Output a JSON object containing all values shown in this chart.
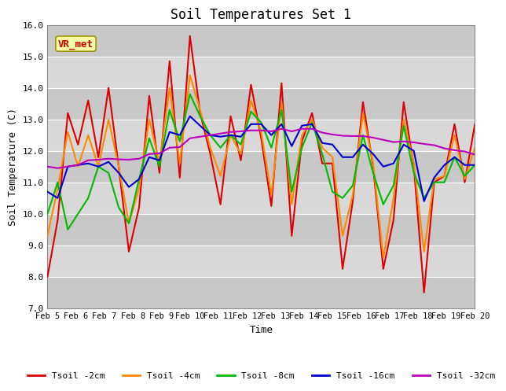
{
  "title": "Soil Temperatures Set 1",
  "xlabel": "Time",
  "ylabel": "Soil Temperature (C)",
  "ylim": [
    7.0,
    16.0
  ],
  "yticks": [
    7.0,
    8.0,
    9.0,
    10.0,
    11.0,
    12.0,
    13.0,
    14.0,
    15.0,
    16.0
  ],
  "ytick_labels": [
    "7.0",
    "8.0",
    "9.0",
    "10.0",
    "11.0",
    "12.0",
    "13.0",
    "14.0",
    "15.0",
    "16.0"
  ],
  "xtick_labels": [
    "Feb 5",
    "Feb 6",
    "Feb 7",
    "Feb 8",
    "Feb 9",
    "Feb 10",
    "Feb 11",
    "Feb 12",
    "Feb 13",
    "Feb 14",
    "Feb 15",
    "Feb 16",
    "Feb 17",
    "Feb 18",
    "Feb 19",
    "Feb 20"
  ],
  "annotation_text": "VR_met",
  "annotation_color": "#cc0000",
  "annotation_box_facecolor": "#ffffaa",
  "annotation_box_edgecolor": "#999900",
  "axes_bg_color": "#d8d8d8",
  "fig_bg_color": "#ffffff",
  "grid_color": "#ffffff",
  "series": [
    {
      "label": "Tsoil -2cm",
      "color": "#dd0000",
      "lw": 1.5,
      "values": [
        8.0,
        9.8,
        13.2,
        12.2,
        13.6,
        11.8,
        14.0,
        11.5,
        8.8,
        10.2,
        13.75,
        11.3,
        14.85,
        11.15,
        15.65,
        13.2,
        11.9,
        10.3,
        13.1,
        11.7,
        14.1,
        12.4,
        10.25,
        14.15,
        9.3,
        12.3,
        13.2,
        11.6,
        11.6,
        8.25,
        10.4,
        13.55,
        11.5,
        8.25,
        9.8,
        13.55,
        11.5,
        7.5,
        11.0,
        11.2,
        12.85,
        11.0,
        12.85
      ]
    },
    {
      "label": "Tsoil -4cm",
      "color": "#ff8800",
      "lw": 1.5,
      "values": [
        9.3,
        10.8,
        12.6,
        11.5,
        12.5,
        11.5,
        13.0,
        11.5,
        9.7,
        10.8,
        13.0,
        11.6,
        14.0,
        11.6,
        14.4,
        13.3,
        12.1,
        11.2,
        12.5,
        11.9,
        13.6,
        12.6,
        10.6,
        13.55,
        10.3,
        12.5,
        13.0,
        12.1,
        11.8,
        9.3,
        10.6,
        13.2,
        11.6,
        8.6,
        10.5,
        13.0,
        11.6,
        8.8,
        11.1,
        11.2,
        12.5,
        11.1,
        12.1
      ]
    },
    {
      "label": "Tsoil -8cm",
      "color": "#00bb00",
      "lw": 1.5,
      "values": [
        10.0,
        11.0,
        9.5,
        10.0,
        10.5,
        11.5,
        11.3,
        10.2,
        9.7,
        11.1,
        12.4,
        11.5,
        13.3,
        12.3,
        13.8,
        13.1,
        12.5,
        12.1,
        12.5,
        12.2,
        13.25,
        12.9,
        12.1,
        13.3,
        10.7,
        12.1,
        12.9,
        11.9,
        10.7,
        10.5,
        10.9,
        12.5,
        11.3,
        10.3,
        10.9,
        12.8,
        11.3,
        10.5,
        11.0,
        11.0,
        11.8,
        11.2,
        11.55
      ]
    },
    {
      "label": "Tsoil -16cm",
      "color": "#0000cc",
      "lw": 1.5,
      "values": [
        10.7,
        10.5,
        11.5,
        11.55,
        11.6,
        11.5,
        11.65,
        11.3,
        10.85,
        11.1,
        11.8,
        11.7,
        12.6,
        12.5,
        13.1,
        12.8,
        12.5,
        12.45,
        12.5,
        12.45,
        12.85,
        12.85,
        12.5,
        12.85,
        12.15,
        12.8,
        12.85,
        12.25,
        12.2,
        11.8,
        11.8,
        12.2,
        11.9,
        11.5,
        11.6,
        12.2,
        12.0,
        10.4,
        11.15,
        11.55,
        11.8,
        11.55,
        11.55
      ]
    },
    {
      "label": "Tsoil -32cm",
      "color": "#bb00bb",
      "lw": 1.5,
      "values": [
        11.5,
        11.45,
        11.5,
        11.55,
        11.7,
        11.72,
        11.75,
        11.73,
        11.72,
        11.75,
        11.9,
        11.92,
        12.1,
        12.12,
        12.4,
        12.45,
        12.5,
        12.55,
        12.6,
        12.62,
        12.65,
        12.65,
        12.62,
        12.7,
        12.62,
        12.7,
        12.7,
        12.58,
        12.52,
        12.48,
        12.47,
        12.47,
        12.42,
        12.35,
        12.28,
        12.3,
        12.27,
        12.22,
        12.18,
        12.08,
        12.02,
        11.98,
        11.88
      ]
    }
  ]
}
